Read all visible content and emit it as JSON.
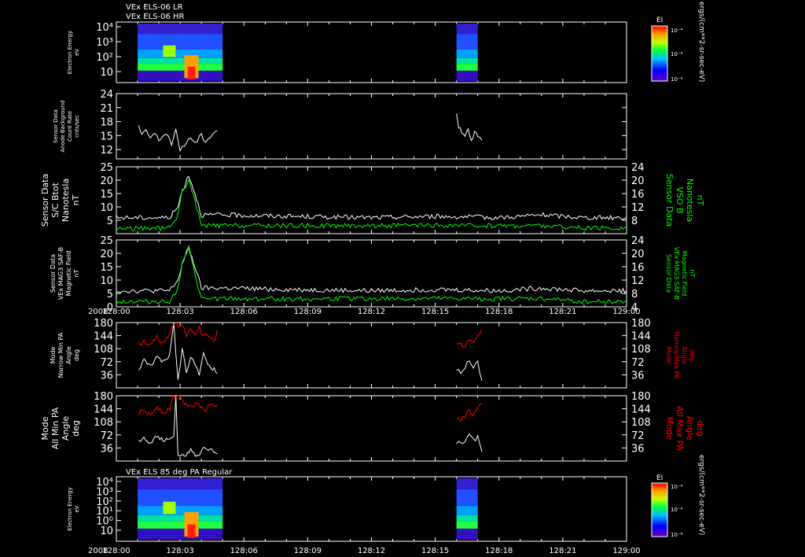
{
  "header": {
    "line1": "VEx ELS-06 LR",
    "line2": "VEx ELS-06 HR",
    "bottom_title": "VEx ELS 85 deg PA Regular"
  },
  "colorbar": {
    "label": "EI",
    "unit": "ergs/(cm**2-sr-sec-eV)",
    "ticks": [
      "10⁻⁴",
      "10⁻⁶",
      "10⁻⁸"
    ],
    "ticks_bottom": [
      "10⁻⁴",
      "10⁻⁶",
      "10⁻⁸"
    ]
  },
  "time_axis": {
    "year": "2008",
    "ticks": [
      "128:00",
      "128:03",
      "128:06",
      "128:09",
      "128:12",
      "128:15",
      "128:18",
      "128:21",
      "129:00"
    ]
  },
  "colors": {
    "white": "#ffffff",
    "green": "#00ff00",
    "red": "#ff0000",
    "bg": "#000000"
  },
  "chart_data": [
    {
      "type": "heatmap",
      "panel": "electron-energy-top",
      "ylabel": [
        "Electron Energy",
        "eV"
      ],
      "yticks": [
        "10⁴",
        "10³",
        "10²",
        "10"
      ],
      "data_windows": [
        [
          "128:01",
          "128:05"
        ],
        [
          "128:16",
          "128:17"
        ]
      ]
    },
    {
      "type": "line",
      "panel": "anode-background",
      "ylabel": [
        "Sensor Data",
        "Anode Background",
        "Count Rate",
        "cnts/sec"
      ],
      "yticks": [
        "24",
        "21",
        "18",
        "15",
        "12"
      ],
      "ylim": [
        10,
        24
      ],
      "series": [
        {
          "x": [
            1.05,
            1.2,
            1.4,
            1.6,
            1.8,
            2.0,
            2.2,
            2.4,
            2.6,
            2.8,
            3.0,
            3.2,
            3.4,
            3.6,
            3.8,
            4.0,
            4.2,
            4.4,
            4.6,
            4.75
          ],
          "values": [
            17,
            15,
            16,
            14.5,
            15.5,
            14,
            15,
            15.5,
            13,
            16,
            12,
            13,
            14.5,
            13.5,
            14,
            15,
            13.5,
            14.5,
            16,
            16
          ],
          "color": "white"
        },
        {
          "x": [
            16.0,
            16.1,
            16.25,
            16.4,
            16.55,
            16.7,
            16.85,
            17.0,
            17.2
          ],
          "values": [
            20,
            17,
            16,
            15,
            16,
            13.5,
            15.5,
            15,
            14
          ],
          "color": "white"
        }
      ]
    },
    {
      "type": "line",
      "panel": "sc-bmag",
      "ylabel": [
        "Sensor Data",
        "S/C Btot",
        "Nanotesla",
        "nT"
      ],
      "ylabel_right": [
        "Sensor Data",
        "VSO B",
        "Nanotesla",
        "nT"
      ],
      "yticks": [
        "25",
        "20",
        "15",
        "10",
        "5"
      ],
      "yticks_right": [
        "24",
        "20",
        "16",
        "12",
        "8"
      ],
      "ylim": [
        0,
        25
      ],
      "ylim_right": [
        4,
        24
      ],
      "series": [
        {
          "x": [
            0,
            2.0,
            2.5,
            2.9,
            3.1,
            3.4,
            3.7,
            4.0,
            5,
            8,
            12,
            15,
            18,
            20,
            22,
            24
          ],
          "values": [
            6,
            6,
            6,
            10,
            16,
            22,
            15,
            7,
            7,
            6.5,
            6,
            6.5,
            6,
            7,
            6,
            6
          ],
          "color": "white"
        },
        {
          "x": [
            0,
            2.0,
            2.5,
            2.9,
            3.1,
            3.4,
            3.7,
            4.0,
            5,
            8,
            12,
            15,
            18,
            20,
            22,
            24
          ],
          "values": [
            2,
            2,
            2,
            7,
            16,
            20,
            12,
            3,
            3,
            3,
            3,
            3,
            3,
            3,
            2,
            2
          ],
          "color": "green"
        }
      ]
    },
    {
      "type": "line",
      "panel": "vex-mag",
      "ylabel": [
        "Sensor Data",
        "VEx MAG3 SAF-B",
        "Magnetic Field",
        "nT"
      ],
      "ylabel_right": [
        "Sensor Data",
        "VEx MAG3 SAF-B",
        "Magnetic Field",
        "nT"
      ],
      "yticks": [
        "25",
        "20",
        "15",
        "10",
        "5",
        "0"
      ],
      "yticks_right": [
        "24",
        "20",
        "16",
        "12",
        "8",
        "4"
      ],
      "ylim": [
        0,
        25
      ],
      "ylim_right": [
        4,
        24
      ],
      "series": [
        {
          "x": [
            0,
            2.0,
            2.5,
            2.9,
            3.1,
            3.4,
            3.7,
            4.0,
            5,
            8,
            12,
            15,
            18,
            20,
            22,
            24
          ],
          "values": [
            6,
            6,
            6,
            10,
            16,
            22,
            15,
            7,
            7,
            6.5,
            6,
            6.5,
            6,
            7,
            6,
            6
          ],
          "color": "white"
        },
        {
          "x": [
            0,
            2.0,
            2.5,
            2.9,
            3.1,
            3.4,
            3.7,
            4.0,
            5,
            8,
            12,
            15,
            18,
            20,
            22,
            24
          ],
          "values": [
            2,
            2,
            2,
            7,
            16,
            22,
            12,
            3,
            3,
            3,
            3,
            3,
            3,
            3,
            2,
            2
          ],
          "color": "green"
        }
      ]
    },
    {
      "type": "line",
      "panel": "narrow-pa",
      "ylabel": [
        "Mode",
        "Narrow Min PA",
        "Angle",
        "deg"
      ],
      "ylabel_right": [
        "Mode",
        "Narrow Max PA",
        "Angle",
        "deg"
      ],
      "yticks": [
        "180",
        "144",
        "108",
        "72",
        "36"
      ],
      "ylim": [
        0,
        180
      ],
      "series": [
        {
          "x": [
            1.05,
            1.3,
            1.6,
            1.9,
            2.2,
            2.5,
            2.7,
            2.9,
            3.1,
            3.3,
            3.5,
            3.7,
            3.9,
            4.1,
            4.3,
            4.6,
            4.75
          ],
          "values": [
            50,
            75,
            60,
            85,
            70,
            90,
            180,
            20,
            110,
            40,
            90,
            60,
            40,
            95,
            60,
            50,
            40
          ],
          "color": "white"
        },
        {
          "x": [
            1.05,
            1.3,
            1.6,
            1.9,
            2.2,
            2.5,
            2.7,
            2.9,
            3.1,
            3.3,
            3.5,
            3.7,
            3.9,
            4.1,
            4.3,
            4.6,
            4.75
          ],
          "values": [
            120,
            130,
            115,
            140,
            120,
            150,
            180,
            170,
            180,
            140,
            160,
            150,
            165,
            140,
            150,
            130,
            160
          ],
          "color": "red"
        },
        {
          "x": [
            16.0,
            16.2,
            16.4,
            16.6,
            16.8,
            17.0,
            17.2
          ],
          "values": [
            50,
            40,
            55,
            75,
            60,
            70,
            20
          ],
          "color": "white"
        },
        {
          "x": [
            16.0,
            16.2,
            16.4,
            16.6,
            16.8,
            17.0,
            17.2
          ],
          "values": [
            115,
            120,
            110,
            135,
            125,
            145,
            160
          ],
          "color": "red"
        }
      ]
    },
    {
      "type": "line",
      "panel": "all-pa",
      "ylabel": [
        "Mode",
        "All Min PA",
        "Angle",
        "deg"
      ],
      "ylabel_right": [
        "Mode",
        "All Max PA",
        "Angle",
        "deg"
      ],
      "yticks": [
        "180",
        "144",
        "108",
        "72",
        "36"
      ],
      "ylim": [
        0,
        180
      ],
      "series": [
        {
          "x": [
            1.05,
            1.3,
            1.6,
            1.9,
            2.2,
            2.5,
            2.7,
            2.8,
            2.9,
            3.2,
            3.5,
            3.8,
            4.1,
            4.4,
            4.75
          ],
          "values": [
            55,
            65,
            50,
            70,
            55,
            60,
            70,
            180,
            10,
            15,
            30,
            10,
            40,
            30,
            20
          ],
          "color": "white"
        },
        {
          "x": [
            1.05,
            1.3,
            1.6,
            1.9,
            2.2,
            2.5,
            2.7,
            2.8,
            2.9,
            3.2,
            3.5,
            3.8,
            4.1,
            4.4,
            4.75
          ],
          "values": [
            130,
            140,
            125,
            150,
            135,
            145,
            180,
            175,
            180,
            160,
            150,
            165,
            140,
            150,
            155
          ],
          "color": "red"
        },
        {
          "x": [
            16.0,
            16.2,
            16.4,
            16.6,
            16.8,
            17.0,
            17.2
          ],
          "values": [
            45,
            55,
            50,
            70,
            55,
            65,
            25
          ],
          "color": "white"
        },
        {
          "x": [
            16.0,
            16.2,
            16.4,
            16.6,
            16.8,
            17.0,
            17.2
          ],
          "values": [
            120,
            110,
            125,
            140,
            125,
            145,
            160
          ],
          "color": "red"
        }
      ]
    },
    {
      "type": "heatmap",
      "panel": "electron-energy-bottom",
      "ylabel": [
        "Electron Energy",
        "eV"
      ],
      "yticks": [
        "10⁴",
        "10³",
        "10²",
        "10¹",
        "10⁰",
        "10"
      ],
      "data_windows": [
        [
          "128:01",
          "128:05"
        ],
        [
          "128:16",
          "128:17"
        ]
      ]
    }
  ]
}
